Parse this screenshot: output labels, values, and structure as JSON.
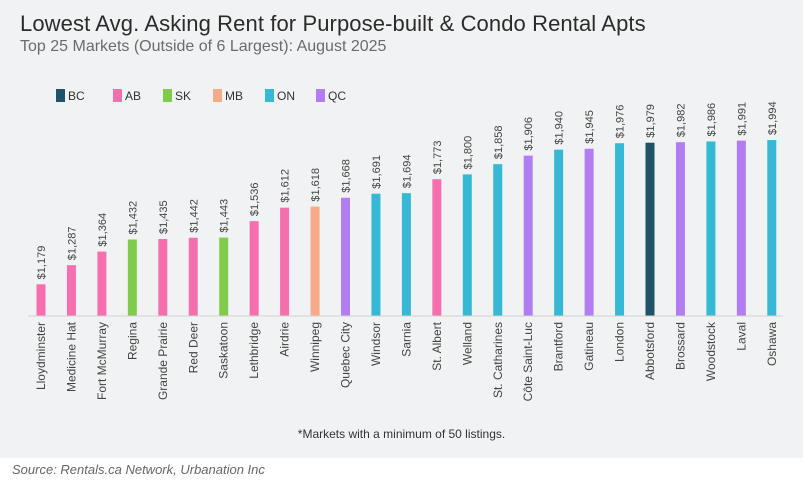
{
  "title": "Lowest Avg. Asking Rent for Purpose-built & Condo Rental Apts",
  "subtitle": "Top 25 Markets (Outside of 6 Largest): August 2025",
  "footnote": "*Markets with a minimum of 50 listings.",
  "source": "Source: Rentals.ca Network, Urbanation Inc",
  "colors": {
    "BC": "#1f5468",
    "AB": "#f56fae",
    "SK": "#7fcc4d",
    "MB": "#f4ab88",
    "ON": "#35b9d4",
    "QC": "#b27df0",
    "background": "#f1f2f3"
  },
  "chart_data": {
    "type": "bar",
    "title": "Lowest Avg. Asking Rent for Purpose-built & Condo Rental Apts",
    "subtitle": "Top 25 Markets (Outside of 6 Largest): August 2025",
    "xlabel": "",
    "ylabel": "",
    "ylim": [
      1000,
      2000
    ],
    "grid": false,
    "legend_position": "top-left",
    "legend": [
      "BC",
      "AB",
      "SK",
      "MB",
      "ON",
      "QC"
    ],
    "categories": [
      "Lloydminster",
      "Medicine Hat",
      "Fort McMurray",
      "Regina",
      "Grande Prairie",
      "Red Deer",
      "Saskatoon",
      "Lethbridge",
      "Airdrie",
      "Winnipeg",
      "Quebec City",
      "Windsor",
      "Sarnia",
      "St. Albert",
      "Welland",
      "St. Catharines",
      "Côte Saint-Luc",
      "Brantford",
      "Gatineau",
      "London",
      "Abbotsford",
      "Brossard",
      "Woodstock",
      "Laval",
      "Oshawa"
    ],
    "values": [
      1179,
      1287,
      1364,
      1432,
      1435,
      1442,
      1443,
      1536,
      1612,
      1618,
      1668,
      1691,
      1694,
      1773,
      1800,
      1858,
      1906,
      1940,
      1945,
      1976,
      1979,
      1982,
      1986,
      1991,
      1994
    ],
    "value_labels": [
      "$1,179",
      "$1,287",
      "$1,364",
      "$1,432",
      "$1,435",
      "$1,442",
      "$1,443",
      "$1,536",
      "$1,612",
      "$1,618",
      "$1,668",
      "$1,691",
      "$1,694",
      "$1,773",
      "$1,800",
      "$1,858",
      "$1,906",
      "$1,940",
      "$1,945",
      "$1,976",
      "$1,979",
      "$1,982",
      "$1,986",
      "$1,991",
      "$1,994"
    ],
    "province": [
      "AB",
      "AB",
      "AB",
      "SK",
      "AB",
      "AB",
      "SK",
      "AB",
      "AB",
      "MB",
      "QC",
      "ON",
      "ON",
      "AB",
      "ON",
      "ON",
      "QC",
      "ON",
      "QC",
      "ON",
      "BC",
      "QC",
      "ON",
      "QC",
      "ON"
    ]
  }
}
